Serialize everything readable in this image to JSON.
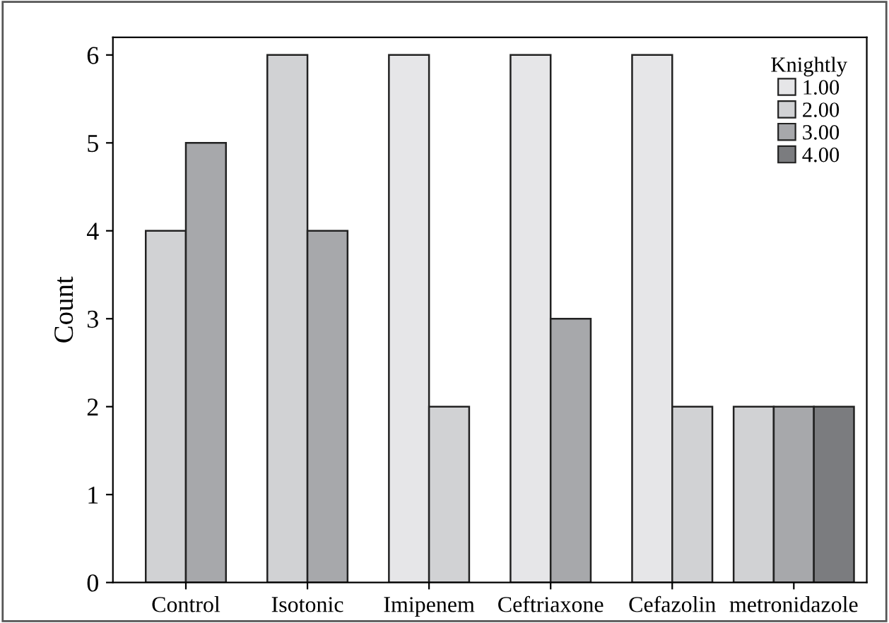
{
  "chart_data": {
    "type": "bar",
    "ylabel": "Count",
    "legend_title": "Knightly",
    "legend": "top right",
    "grid": false,
    "ylim": [
      0,
      6.2
    ],
    "yticks": [
      0,
      1,
      2,
      3,
      4,
      5,
      6
    ],
    "categories": [
      "Control",
      "Isotonic",
      "Imipenem",
      "Ceftriaxone",
      "Cefazolin",
      "metronidazole"
    ],
    "series": [
      {
        "name": "1.00",
        "color": "#e6e6e8",
        "values": [
          null,
          null,
          6,
          6,
          6,
          null
        ]
      },
      {
        "name": "2.00",
        "color": "#d1d2d4",
        "values": [
          4,
          6,
          2,
          null,
          2,
          2
        ]
      },
      {
        "name": "3.00",
        "color": "#a7a8ab",
        "values": [
          5,
          4,
          null,
          3,
          null,
          2
        ]
      },
      {
        "name": "4.00",
        "color": "#7b7c7f",
        "values": [
          null,
          null,
          null,
          null,
          null,
          2
        ]
      }
    ]
  }
}
